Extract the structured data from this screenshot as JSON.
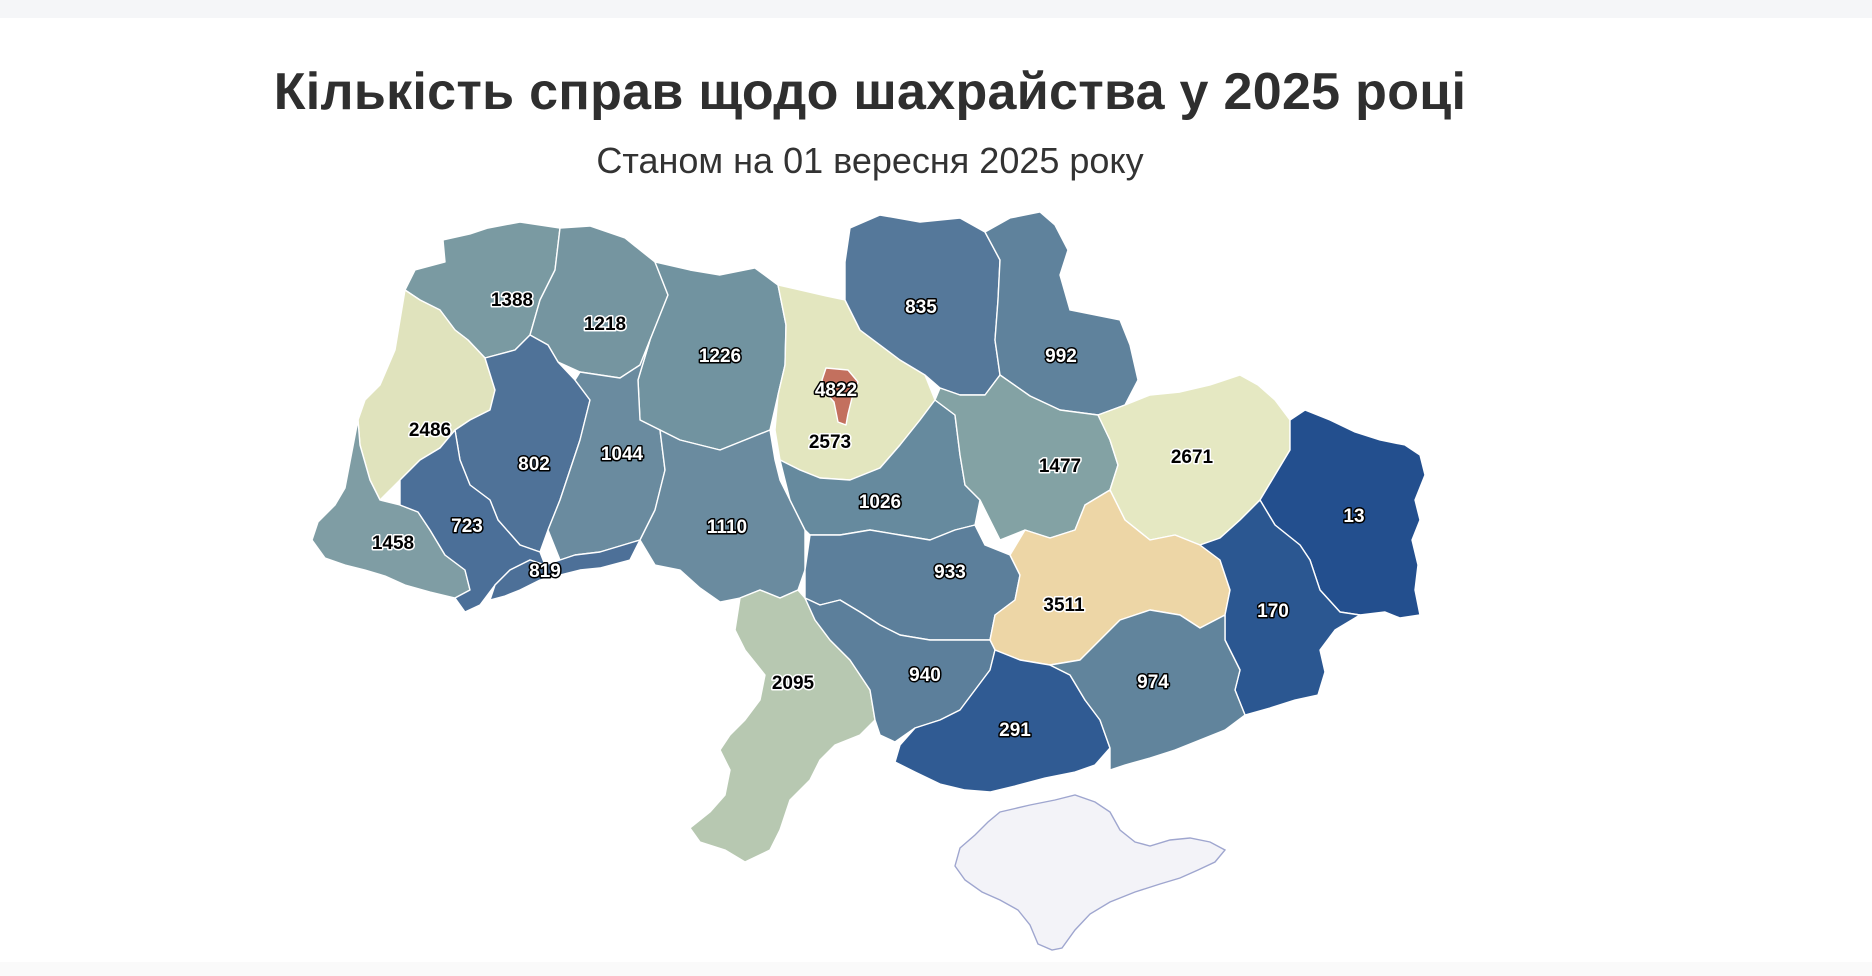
{
  "map": {
    "title": "Кількість справ щодо шахрайства у 2025 році",
    "subtitle": "Станом на 01 вересня 2025 року",
    "colors": {
      "crimea_fill": "#f3f3f8",
      "crimea_stroke": "#9fa6cf"
    },
    "regions": [
      {
        "value": "1388",
        "color": "#7a9aa2"
      },
      {
        "value": "1218",
        "color": "#7595a0"
      },
      {
        "value": "1226",
        "color": "#7193a0"
      },
      {
        "value": "4822",
        "color": "#c3705e"
      },
      {
        "value": "2573",
        "color": "#e3e6bf"
      },
      {
        "value": "835",
        "color": "#55789a"
      },
      {
        "value": "992",
        "color": "#5f829c"
      },
      {
        "value": "2486",
        "color": "#e0e3bd"
      },
      {
        "value": "802",
        "color": "#4f7298"
      },
      {
        "value": "1044",
        "color": "#6a8b9f"
      },
      {
        "value": "1458",
        "color": "#7f9da4"
      },
      {
        "value": "723",
        "color": "#4b6f98"
      },
      {
        "value": "819",
        "color": "#4d7098"
      },
      {
        "value": "1110",
        "color": "#6a8b9f"
      },
      {
        "value": "1026",
        "color": "#668a9e"
      },
      {
        "value": "1477",
        "color": "#83a2a4"
      },
      {
        "value": "2671",
        "color": "#e5e8c2"
      },
      {
        "value": "13",
        "color": "#234f8e"
      },
      {
        "value": "933",
        "color": "#5c7f9b"
      },
      {
        "value": "3511",
        "color": "#edd6a6"
      },
      {
        "value": "170",
        "color": "#2b5791"
      },
      {
        "value": "2095",
        "color": "#b7c8b1"
      },
      {
        "value": "940",
        "color": "#5c7f9b"
      },
      {
        "value": "291",
        "color": "#305b93"
      },
      {
        "value": "974",
        "color": "#61849c"
      }
    ]
  }
}
